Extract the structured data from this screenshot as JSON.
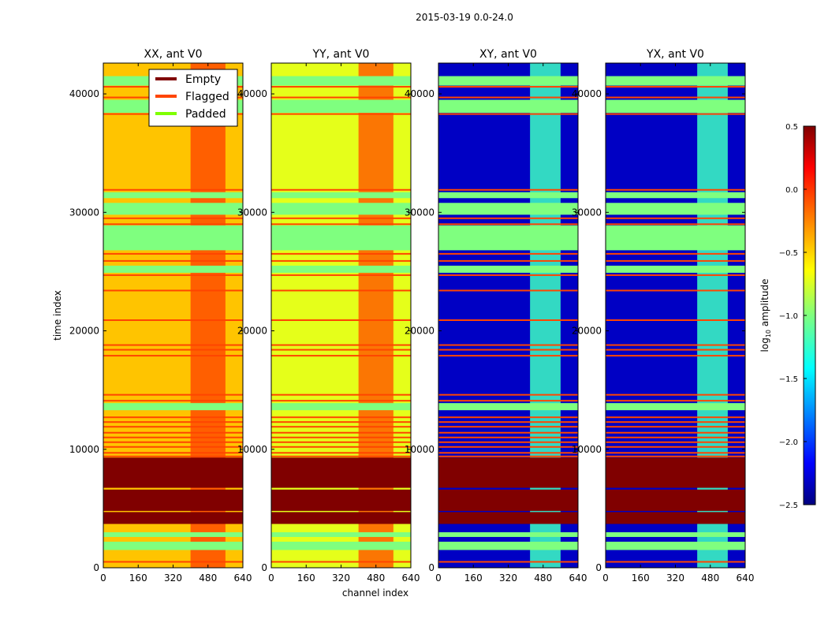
{
  "chart_data": {
    "type": "heatmap",
    "title": "2015-03-19 0.0-24.0",
    "xlabel": "channel index",
    "ylabel": "time index",
    "xlim": [
      0,
      640
    ],
    "ylim": [
      0,
      42600
    ],
    "xticks": [
      "0",
      "160",
      "320",
      "480",
      "640"
    ],
    "xtick_values": [
      0,
      160,
      320,
      480,
      640
    ],
    "yticks": [
      "0",
      "10000",
      "20000",
      "30000",
      "40000"
    ],
    "ytick_values": [
      0,
      10000,
      20000,
      30000,
      40000
    ],
    "panels": [
      {
        "title": "XX, ant V0",
        "base_value": -0.45,
        "hot_channels": [
          400,
          560
        ],
        "hot_value": -0.1
      },
      {
        "title": "YY, ant V0",
        "base_value": -0.7,
        "hot_channels": [
          400,
          560
        ],
        "hot_value": -0.15
      },
      {
        "title": "XY, ant V0",
        "base_value": -2.3,
        "hot_channels": [
          420,
          560
        ],
        "hot_value": -1.2
      },
      {
        "title": "YX, ant V0",
        "base_value": -2.3,
        "hot_channels": [
          420,
          560
        ],
        "hot_value": -1.2
      }
    ],
    "empty_ranges": [
      [
        3700,
        4700
      ],
      [
        4800,
        6600
      ],
      [
        6750,
        9300
      ]
    ],
    "padded_ranges": [
      [
        1500,
        2200
      ],
      [
        2600,
        3000
      ],
      [
        26800,
        28900
      ],
      [
        29800,
        30800
      ],
      [
        31200,
        31700
      ],
      [
        38400,
        39500
      ],
      [
        40700,
        41500
      ],
      [
        24900,
        25500
      ],
      [
        13300,
        13900
      ]
    ],
    "flagged_times": [
      500,
      9400,
      9700,
      10200,
      10600,
      11000,
      11400,
      11900,
      12300,
      12700,
      14100,
      14600,
      17900,
      18400,
      18800,
      20900,
      23400,
      24700,
      25900,
      26500,
      29000,
      29500,
      31900,
      38300,
      39700,
      40600
    ],
    "colorbar": {
      "label": "log",
      "label_sub": "10",
      "label_rest": " amplitude",
      "range": [
        -2.5,
        0.5
      ],
      "ticks": [
        "0.5",
        "0.0",
        "−0.5",
        "−1.0",
        "−1.5",
        "−2.0",
        "−2.5"
      ],
      "tick_values": [
        0.5,
        0.0,
        -0.5,
        -1.0,
        -1.5,
        -2.0,
        -2.5
      ]
    },
    "legend": {
      "placement": "upper-center of first panel",
      "entries": [
        {
          "label": "Empty",
          "color": "#800000"
        },
        {
          "label": "Flagged",
          "color": "#ff4500"
        },
        {
          "label": "Padded",
          "color": "#7fff00"
        }
      ]
    }
  }
}
